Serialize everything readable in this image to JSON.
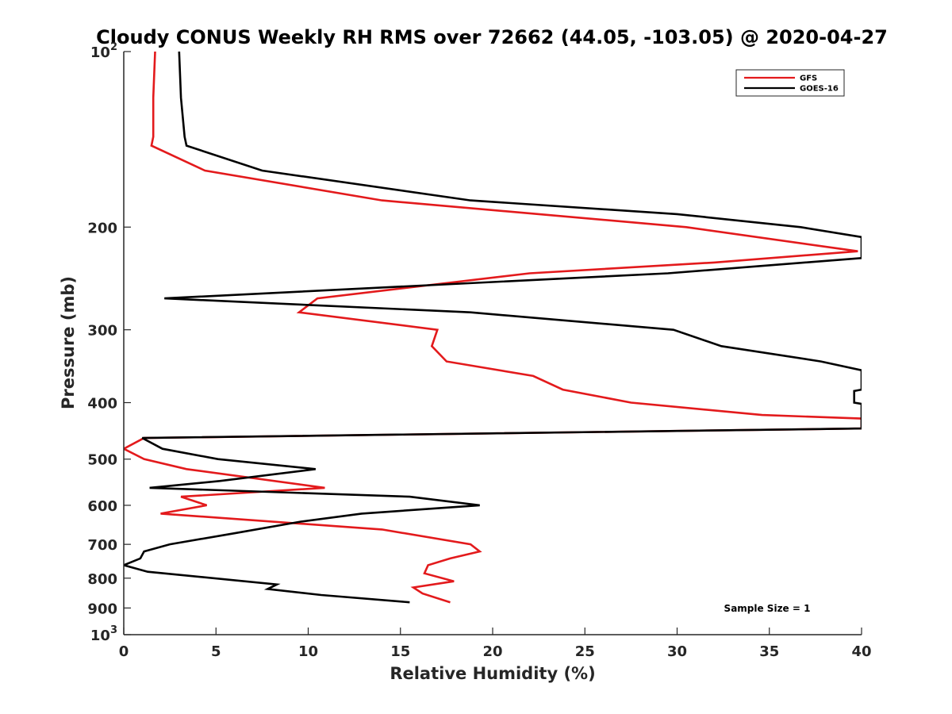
{
  "chart_data": {
    "type": "line",
    "title": "Cloudy CONUS Weekly RH RMS over 72662 (44.05, -103.05) @ 2020-04-27",
    "xlabel": "Relative Humidity (%)",
    "ylabel": "Pressure (mb)",
    "xlim": [
      0,
      40
    ],
    "ylim": [
      100,
      1000
    ],
    "yscale": "log",
    "y_reversed": true,
    "grid": false,
    "legend_position": "top-right",
    "x_ticks": [
      "0",
      "5",
      "10",
      "15",
      "20",
      "25",
      "30",
      "35",
      "40"
    ],
    "y_ticks": [
      {
        "value": 100,
        "base": "10",
        "exp": "2"
      },
      {
        "value": 200,
        "label": "200"
      },
      {
        "value": 300,
        "label": "300"
      },
      {
        "value": 400,
        "label": "400"
      },
      {
        "value": 500,
        "label": "500"
      },
      {
        "value": 600,
        "label": "600"
      },
      {
        "value": 700,
        "label": "700"
      },
      {
        "value": 800,
        "label": "800"
      },
      {
        "value": 900,
        "label": "900"
      },
      {
        "value": 1000,
        "base": "10",
        "exp": "3"
      }
    ],
    "annotation": "Sample Size = 1",
    "series": [
      {
        "name": "GFS",
        "color": "#e31a1c",
        "points": [
          [
            1.7,
            100
          ],
          [
            1.6,
            120
          ],
          [
            1.6,
            140
          ],
          [
            1.5,
            145
          ],
          [
            4.4,
            160
          ],
          [
            14,
            180
          ],
          [
            30.5,
            200
          ],
          [
            39.8,
            220
          ],
          [
            32,
            230
          ],
          [
            22,
            240
          ],
          [
            10.5,
            265
          ],
          [
            9.5,
            280
          ],
          [
            17,
            300
          ],
          [
            16.7,
            320
          ],
          [
            17.5,
            340
          ],
          [
            22.2,
            360
          ],
          [
            23.8,
            380
          ],
          [
            27.5,
            400
          ],
          [
            34.6,
            420
          ],
          [
            40,
            426
          ],
          [
            40,
            443
          ],
          [
            1.1,
            460
          ],
          [
            0,
            480
          ],
          [
            1.1,
            500
          ],
          [
            3.4,
            520
          ],
          [
            10.9,
            560
          ],
          [
            3.1,
            580
          ],
          [
            4.5,
            600
          ],
          [
            2,
            620
          ],
          [
            14,
            660
          ],
          [
            18.8,
            700
          ],
          [
            19.3,
            720
          ],
          [
            17.7,
            740
          ],
          [
            16.5,
            760
          ],
          [
            16.3,
            785
          ],
          [
            17.9,
            810
          ],
          [
            15.7,
            830
          ],
          [
            16.2,
            850
          ],
          [
            17.7,
            880
          ]
        ]
      },
      {
        "name": "GOES-16",
        "color": "#000000",
        "points": [
          [
            3.0,
            100
          ],
          [
            3.1,
            120
          ],
          [
            3.3,
            140
          ],
          [
            3.4,
            145
          ],
          [
            7.5,
            160
          ],
          [
            18.8,
            180
          ],
          [
            30,
            190
          ],
          [
            36.7,
            200
          ],
          [
            40,
            208
          ],
          [
            40,
            226
          ],
          [
            29.5,
            240
          ],
          [
            2.2,
            265
          ],
          [
            18.8,
            280
          ],
          [
            29.8,
            300
          ],
          [
            32.4,
            320
          ],
          [
            37.8,
            340
          ],
          [
            40,
            352
          ],
          [
            40,
            380
          ],
          [
            39.6,
            382
          ],
          [
            39.6,
            400
          ],
          [
            40,
            402
          ],
          [
            40,
            443
          ],
          [
            1.0,
            460
          ],
          [
            2.1,
            480
          ],
          [
            5.1,
            500
          ],
          [
            10.4,
            520
          ],
          [
            5.2,
            545
          ],
          [
            1.4,
            560
          ],
          [
            15.5,
            580
          ],
          [
            19.3,
            600
          ],
          [
            12.9,
            620
          ],
          [
            9.6,
            640
          ],
          [
            6,
            670
          ],
          [
            2.5,
            700
          ],
          [
            1.1,
            720
          ],
          [
            0.9,
            740
          ],
          [
            0,
            760
          ],
          [
            1.3,
            780
          ],
          [
            8.3,
            820
          ],
          [
            7.8,
            835
          ],
          [
            10.7,
            855
          ],
          [
            15.5,
            880
          ]
        ]
      }
    ]
  }
}
